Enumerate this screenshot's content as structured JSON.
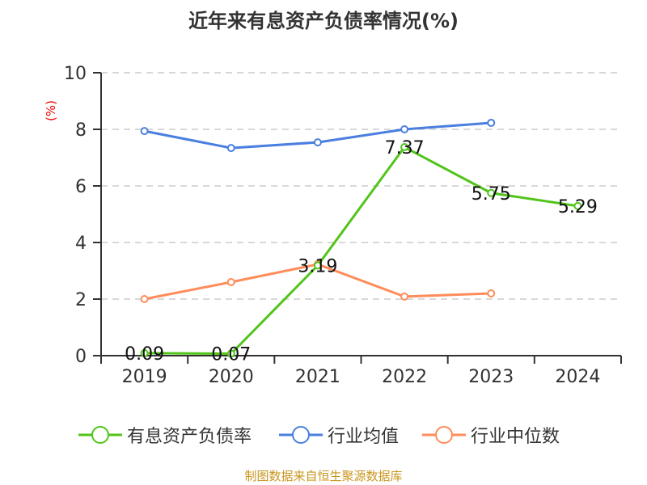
{
  "chart_data": {
    "type": "line",
    "title": "近年来有息资产负债率情况(%)",
    "ylabel": "(%)",
    "categories": [
      "2019",
      "2020",
      "2021",
      "2022",
      "2023",
      "2024"
    ],
    "ylim": [
      0,
      10
    ],
    "yticks": [
      0,
      2,
      4,
      6,
      8,
      10
    ],
    "grid": true,
    "legend_position": "bottom",
    "series": [
      {
        "name": "有息资产负债率",
        "color": "#52c41a",
        "values": [
          0.09,
          0.07,
          3.19,
          7.37,
          5.75,
          5.29
        ],
        "labels": [
          "0.09",
          "0.07",
          "3.19",
          "7.37",
          "5.75",
          "5.29"
        ]
      },
      {
        "name": "行业均值",
        "color": "#4a7fe0",
        "values": [
          7.94,
          7.34,
          7.54,
          8.0,
          8.23,
          null
        ]
      },
      {
        "name": "行业中位数",
        "color": "#ff8c5a",
        "values": [
          2.0,
          2.6,
          3.23,
          2.09,
          2.2,
          null
        ]
      }
    ]
  },
  "source": "制图数据来自恒生聚源数据库"
}
